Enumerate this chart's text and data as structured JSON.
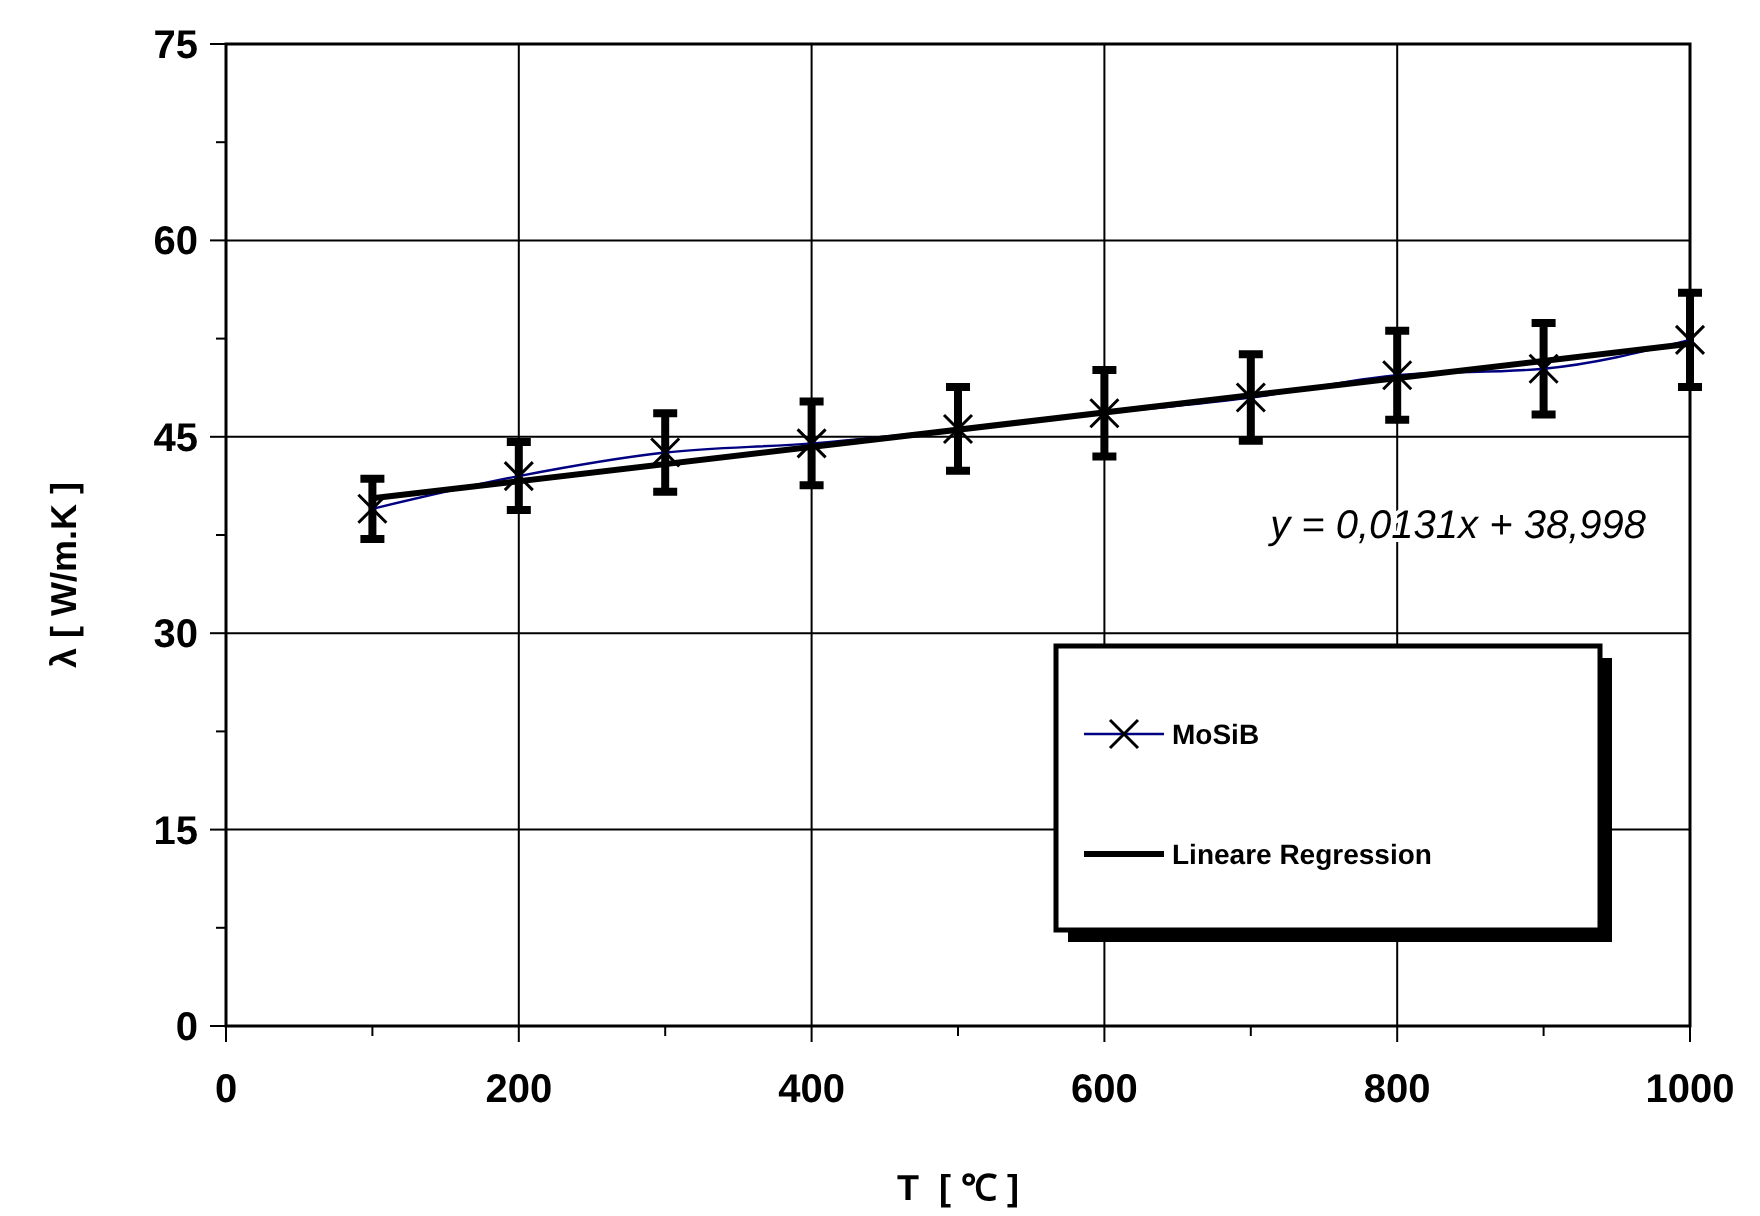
{
  "chart_data": {
    "type": "line",
    "xlabel": "T  [ ℃ ]",
    "ylabel": "λ [ W/m.K ]",
    "xlim": [
      0,
      1000
    ],
    "ylim": [
      0,
      75
    ],
    "xticks": [
      0,
      {
        "value": 100,
        "label": null
      },
      200,
      {
        "value": 300,
        "label": null
      },
      400,
      {
        "value": 500,
        "label": null
      },
      600,
      {
        "value": 700,
        "label": null
      },
      800,
      {
        "value": 900,
        "label": null
      },
      1000
    ],
    "yticks": [
      0,
      {
        "value": 7.5,
        "label": null
      },
      15,
      {
        "value": 22.5,
        "label": null
      },
      30,
      {
        "value": 37.5,
        "label": null
      },
      45,
      {
        "value": 52.5,
        "label": null
      },
      60,
      {
        "value": 67.5,
        "label": null
      },
      75
    ],
    "grid": true,
    "legend": "bottom right",
    "series": [
      {
        "name": "MoSiB",
        "color": "#000080",
        "marker": "cross",
        "x": [
          100,
          200,
          300,
          400,
          500,
          600,
          700,
          800,
          900,
          1000
        ],
        "values": [
          39.5,
          42.0,
          43.8,
          44.5,
          45.6,
          46.8,
          48.0,
          49.7,
          50.2,
          52.4
        ],
        "errors": [
          2.3,
          2.6,
          3.0,
          3.2,
          3.2,
          3.3,
          3.3,
          3.4,
          3.5,
          3.6
        ]
      },
      {
        "name": "Lineare Regression",
        "color": "#000000",
        "x": [
          100,
          1000
        ],
        "values": [
          40.3,
          52.1
        ]
      }
    ],
    "annotations": [
      "y = 0,0131x + 38,998"
    ]
  }
}
